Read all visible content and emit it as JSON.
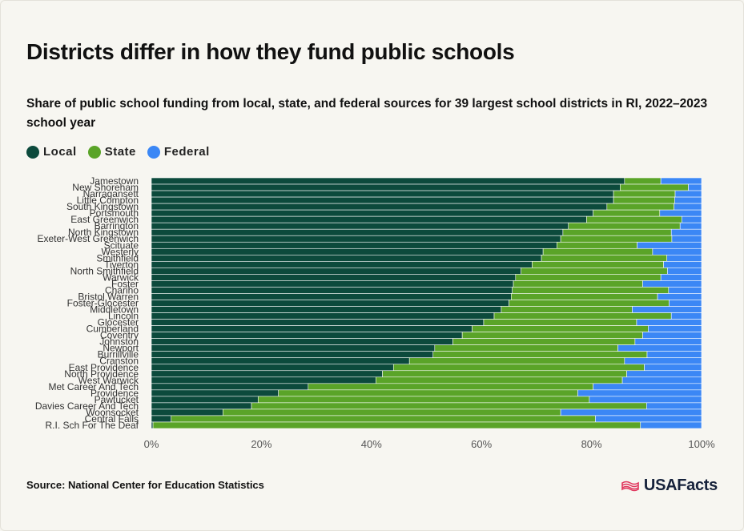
{
  "title": "Districts differ in how they fund public schools",
  "subtitle": "Share of public school funding from local, state, and federal sources for 39 largest school districts in RI, 2022–2023 school year",
  "source": "Source: National Center for Education Statistics",
  "brand": "USAFacts",
  "colors": {
    "local": "#0c4a3c",
    "state": "#5aa428",
    "federal": "#3b87f5",
    "background": "#f7f6f1"
  },
  "legend": [
    {
      "label": "Local",
      "color": "#0c4a3c"
    },
    {
      "label": "State",
      "color": "#5aa428"
    },
    {
      "label": "Federal",
      "color": "#3b87f5"
    }
  ],
  "chart_data": {
    "type": "bar",
    "orientation": "horizontal",
    "stacked": true,
    "categories": [
      "Jamestown",
      "New Shoreham",
      "Narragansett",
      "Little Compton",
      "South Kingstown",
      "Portsmouth",
      "East Greenwich",
      "Barrington",
      "North Kingstown",
      "Exeter-West Greenwich",
      "Scituate",
      "Westerly",
      "Smithfield",
      "Tiverton",
      "North Smithfield",
      "Warwick",
      "Foster",
      "Chariho",
      "Bristol Warren",
      "Foster-Glocester",
      "Middletown",
      "Lincoln",
      "Glocester",
      "Cumberland",
      "Coventry",
      "Johnston",
      "Newport",
      "Burrillville",
      "Cranston",
      "East Providence",
      "North Providence",
      "West Warwick",
      "Met Career And Tech",
      "Providence",
      "Pawtucket",
      "Davies Career And Tech",
      "Woonsocket",
      "Central Falls",
      "R.I. Sch For The Deaf"
    ],
    "series": [
      {
        "name": "Local",
        "values": [
          86,
          85.2,
          84,
          84,
          82.8,
          80.3,
          79.1,
          75.8,
          74.8,
          74.4,
          73.7,
          71.2,
          70.9,
          69.2,
          67.2,
          66.2,
          65.8,
          65.6,
          65.4,
          65,
          63.6,
          62.3,
          60.4,
          58.3,
          56.5,
          54.8,
          51.5,
          51.2,
          46.9,
          44,
          42,
          40.8,
          28.5,
          23.1,
          19.4,
          18.2,
          13,
          3.6,
          0.3
        ]
      },
      {
        "name": "State",
        "values": [
          6.6,
          12.4,
          11.2,
          11.1,
          12.2,
          12.1,
          17.3,
          20.3,
          19.7,
          20.2,
          14.6,
          19.9,
          22.8,
          23.9,
          26.6,
          26.4,
          23.5,
          28.4,
          26.6,
          29.1,
          23.8,
          32.2,
          27.8,
          32,
          32.8,
          33.1,
          33.3,
          38.9,
          39.1,
          45.6,
          44.4,
          44.8,
          51.8,
          54.4,
          60.2,
          71.8,
          61.4,
          77.1,
          88.6
        ]
      },
      {
        "name": "Federal",
        "values": [
          7.4,
          2.4,
          4.8,
          4.9,
          5,
          7.6,
          3.6,
          3.9,
          5.5,
          5.4,
          11.7,
          8.9,
          6.3,
          6.9,
          6.2,
          7.4,
          10.7,
          6,
          8,
          5.9,
          12.6,
          5.5,
          11.8,
          9.7,
          10.7,
          12.1,
          15.2,
          9.9,
          14,
          10.4,
          13.6,
          14.4,
          19.7,
          22.5,
          20.4,
          10,
          25.6,
          19.3,
          11.1
        ]
      }
    ],
    "xlim": [
      0,
      100
    ],
    "xticks": [
      "0%",
      "20%",
      "40%",
      "60%",
      "80%",
      "100%"
    ],
    "grid": false,
    "legend_position": "top-left"
  }
}
